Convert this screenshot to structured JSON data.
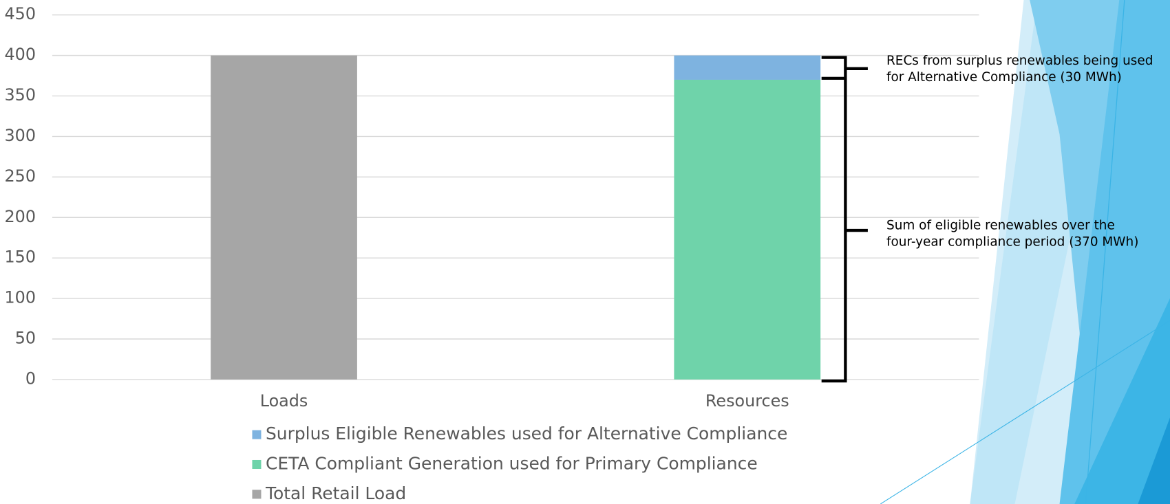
{
  "chart_data": {
    "type": "bar",
    "stacked": true,
    "categories": [
      "Loads",
      "Resources"
    ],
    "series": [
      {
        "name": "Surplus Eligible Renewables used for Alternative Compliance",
        "color": "#7eb3e0",
        "values": [
          null,
          30
        ]
      },
      {
        "name": "CETA Compliant Generation used for Primary Compliance",
        "color": "#6fd3aa",
        "values": [
          null,
          370
        ]
      },
      {
        "name": "Total Retail Load",
        "color": "#a6a6a6",
        "values": [
          400,
          null
        ]
      }
    ],
    "ylim": [
      0,
      450
    ],
    "yticks": [
      0,
      50,
      100,
      150,
      200,
      250,
      300,
      350,
      400,
      450
    ],
    "grid": true,
    "legend": "bottom",
    "annotations": [
      {
        "lines": [
          "RECs from surplus renewables being used",
          "for Alternative Compliance (30 MWh)"
        ]
      },
      {
        "lines": [
          "Sum of eligible renewables over the",
          "four-year compliance period (370 MWh)"
        ]
      }
    ]
  }
}
